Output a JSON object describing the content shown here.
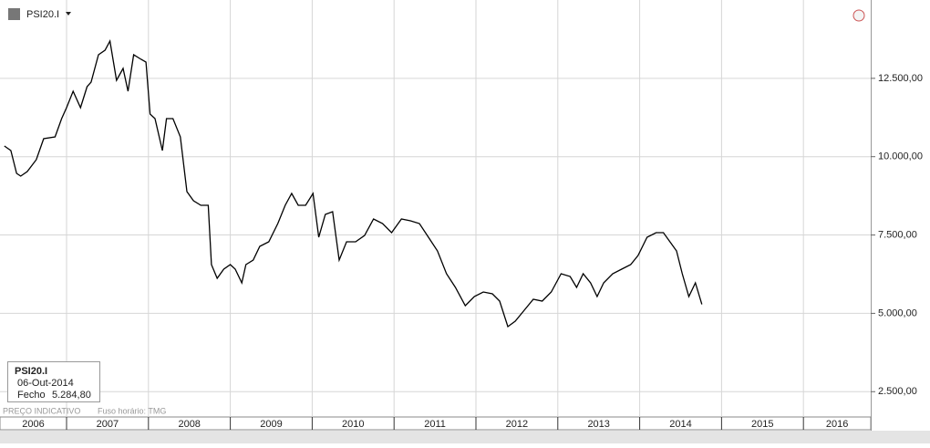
{
  "header": {
    "symbol": "PSI20.I"
  },
  "tooltip": {
    "symbol": "PSI20.I",
    "date": "06-Out-2014",
    "field": "Fecho",
    "value": "5.284,80"
  },
  "footer": {
    "note": "PREÇO INDICATIVO",
    "timezone": "Fuso horário: TMG"
  },
  "chart_data": {
    "type": "line",
    "color": "#000000",
    "grid": true,
    "x": [
      2006.24,
      2006.32,
      2006.39,
      2006.44,
      2006.52,
      2006.63,
      2006.72,
      2006.86,
      2006.94,
      2007.0,
      2007.08,
      2007.17,
      2007.25,
      2007.3,
      2007.39,
      2007.47,
      2007.53,
      2007.61,
      2007.69,
      2007.75,
      2007.82,
      2007.91,
      2007.97,
      2008.02,
      2008.08,
      2008.17,
      2008.22,
      2008.3,
      2008.39,
      2008.47,
      2008.55,
      2008.64,
      2008.73,
      2008.77,
      2008.84,
      2008.92,
      2009.0,
      2009.06,
      2009.14,
      2009.19,
      2009.28,
      2009.36,
      2009.47,
      2009.58,
      2009.67,
      2009.75,
      2009.83,
      2009.92,
      2010.01,
      2010.08,
      2010.16,
      2010.25,
      2010.33,
      2010.42,
      2010.53,
      2010.64,
      2010.75,
      2010.86,
      2010.97,
      2011.09,
      2011.2,
      2011.31,
      2011.42,
      2011.53,
      2011.64,
      2011.75,
      2011.87,
      2011.98,
      2012.09,
      2012.2,
      2012.29,
      2012.39,
      2012.48,
      2012.59,
      2012.7,
      2012.81,
      2012.92,
      2013.04,
      2013.15,
      2013.23,
      2013.31,
      2013.4,
      2013.48,
      2013.56,
      2013.67,
      2013.78,
      2013.89,
      2013.98,
      2014.09,
      2014.2,
      2014.29,
      2014.37,
      2014.45,
      2014.52,
      2014.6,
      2014.68,
      2014.76
    ],
    "values": [
      10341,
      10195,
      9468,
      9380,
      9526,
      9904,
      10574,
      10632,
      11215,
      11564,
      12088,
      11564,
      12234,
      12379,
      13253,
      13399,
      13690,
      12438,
      12816,
      12088,
      13253,
      13108,
      13020,
      11360,
      11215,
      10195,
      11215,
      11215,
      10632,
      8885,
      8594,
      8448,
      8448,
      6555,
      6119,
      6410,
      6555,
      6410,
      5973,
      6555,
      6701,
      7138,
      7283,
      7866,
      8448,
      8827,
      8448,
      8448,
      8827,
      7429,
      8157,
      8244,
      6701,
      7283,
      7283,
      7487,
      8011,
      7866,
      7575,
      8011,
      7953,
      7866,
      7429,
      6992,
      6264,
      5827,
      5245,
      5536,
      5682,
      5624,
      5391,
      4576,
      4750,
      5100,
      5449,
      5391,
      5682,
      6264,
      6177,
      5827,
      6264,
      5973,
      5536,
      5973,
      6264,
      6410,
      6555,
      6847,
      7429,
      7575,
      7575,
      7283,
      6992,
      6264,
      5536,
      5973,
      5284.8
    ],
    "xlim": [
      2006.187,
      2016.822
    ],
    "xticks": [
      2006,
      2007,
      2008,
      2009,
      2010,
      2011,
      2012,
      2013,
      2014,
      2015,
      2016
    ],
    "ylim": [
      2100,
      15000
    ],
    "yticks": [
      {
        "value": 2500,
        "label": "2.500,00"
      },
      {
        "value": 5000,
        "label": "5.000,00"
      },
      {
        "value": 7500,
        "label": "7.500,00"
      },
      {
        "value": 10000,
        "label": "10.000,00"
      },
      {
        "value": 12500,
        "label": "12.500,00"
      }
    ]
  }
}
